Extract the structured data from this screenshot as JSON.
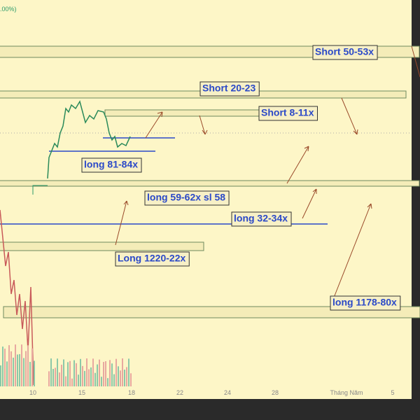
{
  "header": {
    "change": ".00%)"
  },
  "annotations": [
    "Short 50-53x",
    "Short 20-23",
    "Short 8-11x",
    "long 81-84x",
    "long 59-62x sl 58",
    "long 32-34x",
    "Long 1220-22x",
    "long 1178-80x"
  ],
  "x_axis": {
    "labels": [
      "10",
      "15",
      "18",
      "22",
      "24",
      "28",
      "Tháng Năm",
      "5"
    ]
  }
}
